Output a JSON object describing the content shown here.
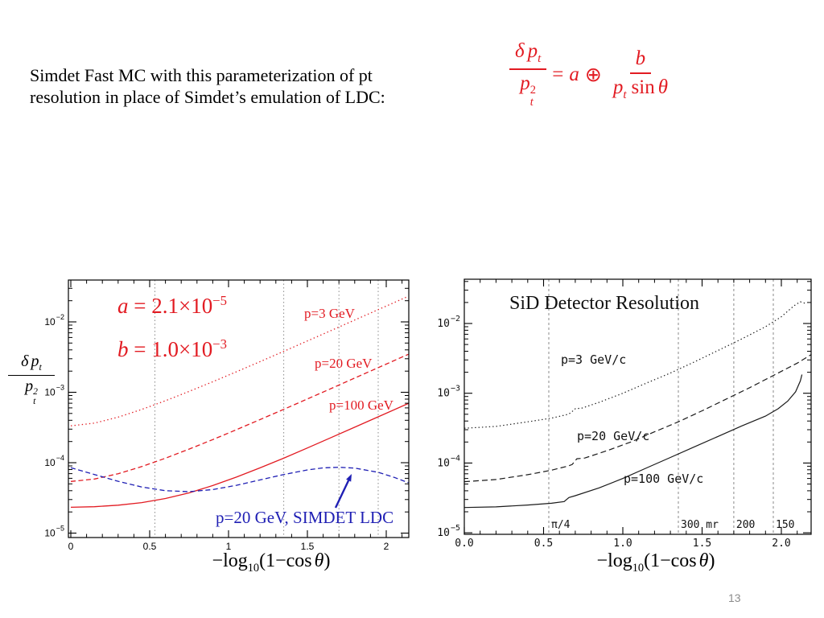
{
  "slide": {
    "page_number": "13"
  },
  "header": {
    "line1": "Simdet Fast MC with this parameterization of pt",
    "line2": "resolution in place of Simdet’s emulation of LDC:"
  },
  "formula": {
    "delta": "δ",
    "p": "p",
    "t": "t",
    "two": "2",
    "eq": "=",
    "a": "a",
    "oplus": "⊕",
    "b": "b",
    "sin": "sin",
    "theta": "θ",
    "color": "#e21b22"
  },
  "yaxis_label": {
    "delta": "δ",
    "p": "p",
    "t": "t",
    "two": "2"
  },
  "xlabel": {
    "pre": "−log",
    "sub": "10",
    "mid": "(1−cos",
    "theta": "θ",
    "post": ")"
  },
  "annotations": {
    "a_lhs": "a",
    "a_eq": "=",
    "a_coeff": "2.1×10",
    "a_exp": "−5",
    "b_lhs": "b",
    "b_eq": "=",
    "b_coeff": "1.0×10",
    "b_exp": "−3"
  },
  "chart_data": [
    {
      "type": "line",
      "title": "",
      "xlabel": "-log10(1-cos theta)",
      "ylabel": "delta pt / pt^2",
      "y_scale": "log",
      "x_range": [
        0,
        2.14
      ],
      "ylim": [
        1e-05,
        0.04
      ],
      "x_ticks": [
        {
          "v": 0,
          "label": "0"
        },
        {
          "v": 0.5,
          "label": "0.5"
        },
        {
          "v": 1,
          "label": "1"
        },
        {
          "v": 1.5,
          "label": "1.5"
        },
        {
          "v": 2,
          "label": "2"
        }
      ],
      "x_minor_step": 0.1,
      "y_tick_exponents": [
        -2,
        -3,
        -4,
        -5
      ],
      "gridlines": [
        {
          "x": 0.533
        },
        {
          "x": 1.35
        },
        {
          "x": 1.7
        },
        {
          "x": 1.949
        }
      ],
      "series": [
        {
          "name": "p=3 GeV parameterized",
          "label": "p=3 GeV",
          "color": "#e21b22",
          "style": "dotted",
          "points": [
            [
              0,
              0.000334
            ],
            [
              0.15,
              0.000365
            ],
            [
              0.3,
              0.000444
            ],
            [
              0.45,
              0.000571
            ],
            [
              0.6,
              0.000759
            ],
            [
              0.75,
              0.001029
            ],
            [
              0.9,
              0.001412
            ],
            [
              1.05,
              0.001957
            ],
            [
              1.2,
              0.002728
            ],
            [
              1.35,
              0.003814
            ],
            [
              1.5,
              0.005359
            ],
            [
              1.65,
              0.007525
            ],
            [
              1.8,
              0.01061
            ],
            [
              1.95,
              0.01495
            ],
            [
              2.14,
              0.0231
            ]
          ]
        },
        {
          "name": "p=20 GeV parameterized",
          "label": "p=20 GeV",
          "color": "#e21b22",
          "style": "dashed",
          "points": [
            [
              0,
              5.42e-05
            ],
            [
              0.15,
              5.86e-05
            ],
            [
              0.3,
              6.98e-05
            ],
            [
              0.45,
              8.82e-05
            ],
            [
              0.6,
              0.000116
            ],
            [
              0.75,
              0.000156
            ],
            [
              0.9,
              0.000213
            ],
            [
              1.05,
              0.000294
            ],
            [
              1.2,
              0.00041
            ],
            [
              1.35,
              0.000573
            ],
            [
              1.5,
              0.000804
            ],
            [
              1.65,
              0.001129
            ],
            [
              1.8,
              0.001592
            ],
            [
              1.95,
              0.002242
            ],
            [
              2.14,
              0.003465
            ]
          ]
        },
        {
          "name": "p=100 GeV parameterized",
          "label": "p=100 GeV",
          "color": "#e21b22",
          "style": "solid",
          "points": [
            [
              0,
              2.33e-05
            ],
            [
              0.15,
              2.37e-05
            ],
            [
              0.3,
              2.49e-05
            ],
            [
              0.45,
              2.71e-05
            ],
            [
              0.6,
              3.1e-05
            ],
            [
              0.75,
              3.73e-05
            ],
            [
              0.9,
              4.73e-05
            ],
            [
              1.05,
              6.24e-05
            ],
            [
              1.2,
              8.45e-05
            ],
            [
              1.35,
              0.000116
            ],
            [
              1.5,
              0.000162
            ],
            [
              1.65,
              0.000227
            ],
            [
              1.8,
              0.000319
            ],
            [
              1.95,
              0.000449
            ],
            [
              2.14,
              0.000693
            ]
          ]
        },
        {
          "name": "p=20 GeV SIMDET LDC",
          "label": "p=20 GeV,  SIMDET LDC",
          "color": "#1f1fb4",
          "style": "dashed",
          "points": [
            [
              0,
              8.5e-05
            ],
            [
              0.15,
              6.8e-05
            ],
            [
              0.3,
              5.45e-05
            ],
            [
              0.45,
              4.52e-05
            ],
            [
              0.6,
              4e-05
            ],
            [
              0.75,
              3.88e-05
            ],
            [
              0.9,
              4.15e-05
            ],
            [
              1.05,
              4.78e-05
            ],
            [
              1.2,
              5.7e-05
            ],
            [
              1.35,
              6.8e-05
            ],
            [
              1.5,
              7.9e-05
            ],
            [
              1.6,
              8.45e-05
            ],
            [
              1.7,
              8.6e-05
            ],
            [
              1.8,
              8.38e-05
            ],
            [
              1.95,
              7.3e-05
            ],
            [
              2.05,
              6.2e-05
            ],
            [
              2.14,
              5.2e-05
            ]
          ]
        }
      ]
    },
    {
      "type": "line",
      "title": "SiD Detector Resolution",
      "xlabel": "-log10(1-cos theta)",
      "ylabel": "delta pt / pt^2",
      "y_scale": "log",
      "x_range": [
        0,
        2.19
      ],
      "ylim": [
        1e-05,
        0.04
      ],
      "x_ticks": [
        {
          "v": 0,
          "label": "0.0"
        },
        {
          "v": 0.5,
          "label": "0.5"
        },
        {
          "v": 1,
          "label": "1.0"
        },
        {
          "v": 1.5,
          "label": "1.5"
        },
        {
          "v": 2,
          "label": "2.0"
        }
      ],
      "x_minor_step": 0.1,
      "y_tick_exponents": [
        -2,
        -3,
        -4,
        -5
      ],
      "gridlines": [
        {
          "x": 0.533,
          "label": "π/4"
        },
        {
          "x": 1.35,
          "label": "300 mr"
        },
        {
          "x": 1.7,
          "label": "200"
        },
        {
          "x": 1.949,
          "label": "150"
        }
      ],
      "series": [
        {
          "name": "p=3 GeV/c SiD",
          "label": "p=3 GeV/c",
          "color": "#1a1a1a",
          "style": "dotted",
          "points": [
            [
              0,
              0.000315
            ],
            [
              0.2,
              0.000335
            ],
            [
              0.4,
              0.00039
            ],
            [
              0.55,
              0.00044
            ],
            [
              0.64,
              0.00049
            ],
            [
              0.67,
              0.00052
            ],
            [
              0.7,
              0.0006
            ],
            [
              0.74,
              0.00061
            ],
            [
              0.85,
              0.00074
            ],
            [
              1,
              0.001
            ],
            [
              1.15,
              0.0014
            ],
            [
              1.3,
              0.00195
            ],
            [
              1.45,
              0.0028
            ],
            [
              1.6,
              0.0041
            ],
            [
              1.75,
              0.006
            ],
            [
              1.9,
              0.009
            ],
            [
              2,
              0.0125
            ],
            [
              2.08,
              0.018
            ],
            [
              2.12,
              0.0205
            ],
            [
              2.15,
              0.0195
            ]
          ]
        },
        {
          "name": "p=20 GeV/c SiD",
          "label": "p=20 GeV/c",
          "color": "#1a1a1a",
          "style": "dashed",
          "points": [
            [
              0,
              5.4e-05
            ],
            [
              0.2,
              5.8e-05
            ],
            [
              0.4,
              6.8e-05
            ],
            [
              0.55,
              7.9e-05
            ],
            [
              0.65,
              9e-05
            ],
            [
              0.68,
              9.5e-05
            ],
            [
              0.71,
              0.000115
            ],
            [
              0.76,
              0.000118
            ],
            [
              0.9,
              0.00015
            ],
            [
              1.05,
              0.0002
            ],
            [
              1.2,
              0.00028
            ],
            [
              1.35,
              0.00039
            ],
            [
              1.5,
              0.00056
            ],
            [
              1.65,
              0.00082
            ],
            [
              1.8,
              0.0012
            ],
            [
              1.95,
              0.0018
            ],
            [
              2.1,
              0.0027
            ],
            [
              2.19,
              0.0036
            ]
          ]
        },
        {
          "name": "p=100 GeV/c SiD",
          "label": "p=100 GeV/c",
          "color": "#1a1a1a",
          "style": "solid",
          "points": [
            [
              0,
              2.3e-05
            ],
            [
              0.2,
              2.35e-05
            ],
            [
              0.4,
              2.5e-05
            ],
            [
              0.55,
              2.65e-05
            ],
            [
              0.63,
              2.8e-05
            ],
            [
              0.66,
              3.2e-05
            ],
            [
              0.7,
              3.4e-05
            ],
            [
              0.85,
              4.4e-05
            ],
            [
              1,
              6e-05
            ],
            [
              1.15,
              8.5e-05
            ],
            [
              1.3,
              0.00012
            ],
            [
              1.45,
              0.00017
            ],
            [
              1.6,
              0.00024
            ],
            [
              1.75,
              0.00034
            ],
            [
              1.9,
              0.00047
            ],
            [
              1.98,
              0.0006
            ],
            [
              2.04,
              0.00077
            ],
            [
              2.09,
              0.00105
            ],
            [
              2.12,
              0.0015
            ],
            [
              2.13,
              0.00185
            ]
          ]
        }
      ]
    }
  ]
}
